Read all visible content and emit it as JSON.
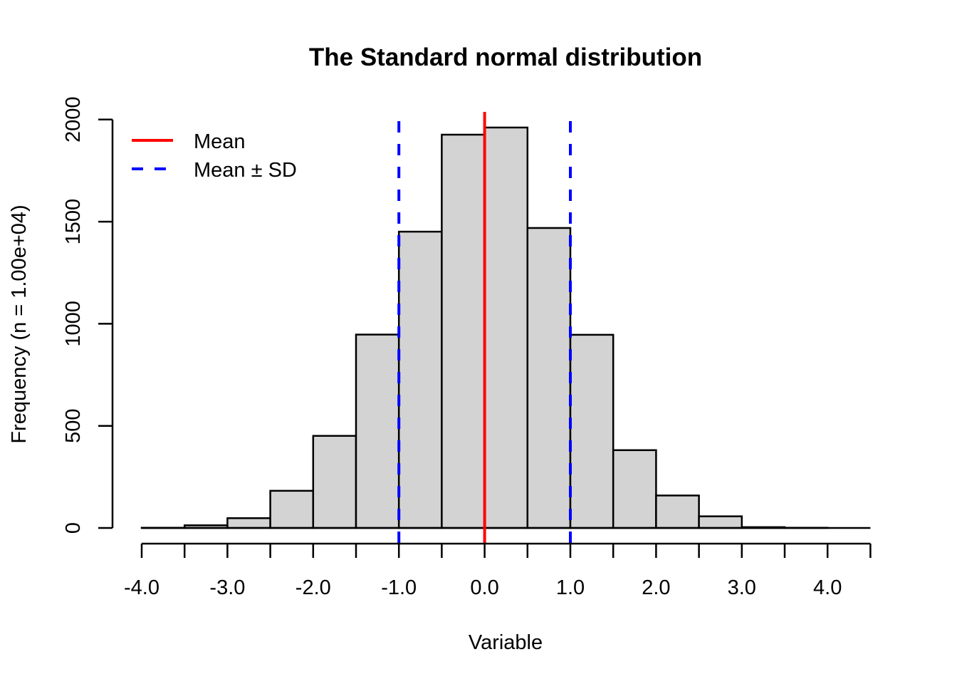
{
  "chart_data": {
    "type": "bar",
    "subtype": "histogram",
    "title": "The Standard normal distribution",
    "xlabel": "Variable",
    "ylabel": "Frequency (n = 1.00e+04)",
    "bin_edges": [
      -4.0,
      -3.5,
      -3.0,
      -2.5,
      -2.0,
      -1.5,
      -1.0,
      -0.5,
      0.0,
      0.5,
      1.0,
      1.5,
      2.0,
      2.5,
      3.0,
      3.5,
      4.0,
      4.5
    ],
    "values": [
      1,
      13,
      48,
      182,
      451,
      947,
      1451,
      1926,
      1961,
      1469,
      946,
      381,
      159,
      57,
      4,
      1,
      0
    ],
    "xlim": [
      -4.0,
      4.5
    ],
    "ylim": [
      0,
      2000
    ],
    "x_ticks": [
      -4.0,
      -3.5,
      -3.0,
      -2.5,
      -2.0,
      -1.5,
      -1.0,
      -0.5,
      0.0,
      0.5,
      1.0,
      1.5,
      2.0,
      2.5,
      3.0,
      3.5,
      4.0,
      4.5
    ],
    "x_tick_labels": [
      {
        "value": -4.0,
        "label": "-4.0"
      },
      {
        "value": -3.0,
        "label": "-3.0"
      },
      {
        "value": -2.0,
        "label": "-2.0"
      },
      {
        "value": -1.0,
        "label": "-1.0"
      },
      {
        "value": 0.0,
        "label": "0.0"
      },
      {
        "value": 1.0,
        "label": "1.0"
      },
      {
        "value": 2.0,
        "label": "2.0"
      },
      {
        "value": 3.0,
        "label": "3.0"
      },
      {
        "value": 4.0,
        "label": "4.0"
      }
    ],
    "y_ticks": [
      {
        "value": 0,
        "label": "0"
      },
      {
        "value": 500,
        "label": "500"
      },
      {
        "value": 1000,
        "label": "1000"
      },
      {
        "value": 1500,
        "label": "1500"
      },
      {
        "value": 2000,
        "label": "2000"
      }
    ],
    "bar_fill": "#d3d3d3",
    "bar_stroke": "#000000",
    "reference_lines": [
      {
        "name": "Mean",
        "x": 0.0,
        "color": "#ff0000",
        "style": "solid"
      },
      {
        "name": "Mean - SD",
        "x": -1.0,
        "color": "#0000ff",
        "style": "dashed"
      },
      {
        "name": "Mean + SD",
        "x": 1.0,
        "color": "#0000ff",
        "style": "dashed"
      }
    ],
    "legend": {
      "position": "top-left",
      "entries": [
        {
          "label": "Mean",
          "color": "#ff0000",
          "style": "solid"
        },
        {
          "label": "Mean ± SD",
          "color": "#0000ff",
          "style": "dashed"
        }
      ]
    },
    "grid": false
  }
}
